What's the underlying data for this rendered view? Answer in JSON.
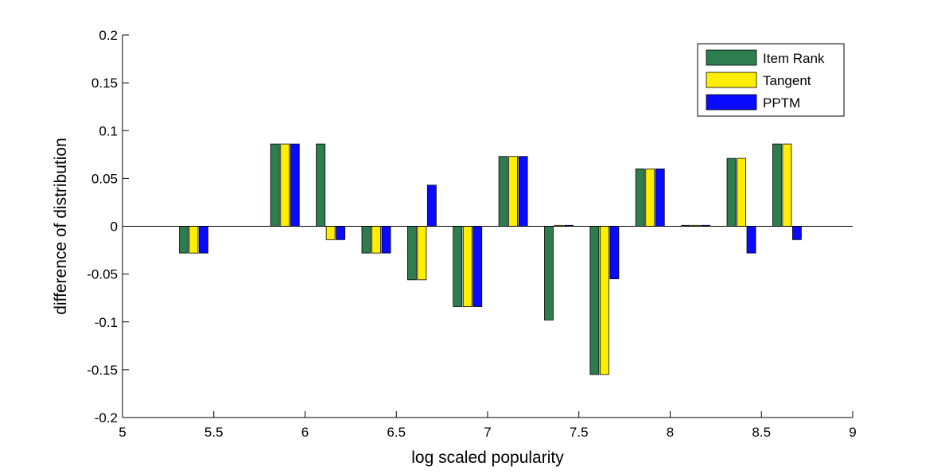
{
  "chart_data": {
    "type": "bar",
    "title": "",
    "xlabel": "log scaled popularity",
    "ylabel": "difference of distribution",
    "xlim": [
      5,
      9
    ],
    "ylim": [
      -0.2,
      0.2
    ],
    "x_ticks": [
      5,
      5.5,
      6,
      6.5,
      7,
      7.5,
      8,
      8.5,
      9
    ],
    "x_tick_labels": [
      "5",
      "5.5",
      "6",
      "6.5",
      "7",
      "7.5",
      "8",
      "8.5",
      "9"
    ],
    "y_ticks": [
      -0.2,
      -0.15,
      -0.1,
      -0.05,
      0,
      0.05,
      0.1,
      0.15,
      0.2
    ],
    "y_tick_labels": [
      "-0.2",
      "-0.15",
      "-0.1",
      "-0.05",
      "0",
      "0.05",
      "0.1",
      "0.15",
      "0.2"
    ],
    "grid": false,
    "legend_position": "top-right",
    "x": [
      5.39,
      5.89,
      6.14,
      6.39,
      6.64,
      6.89,
      7.14,
      7.39,
      7.64,
      7.89,
      8.14,
      8.39,
      8.64
    ],
    "series": [
      {
        "name": "Item Rank",
        "color": "#2e7d4f",
        "values": [
          -0.028,
          0.086,
          0.086,
          -0.028,
          -0.056,
          -0.084,
          0.073,
          -0.098,
          -0.155,
          0.06,
          0.001,
          0.071,
          0.086
        ]
      },
      {
        "name": "Tangent",
        "color": "#ffee00",
        "values": [
          -0.028,
          0.086,
          -0.014,
          -0.028,
          -0.056,
          -0.084,
          0.073,
          0.001,
          -0.155,
          0.06,
          0.001,
          0.071,
          0.086
        ]
      },
      {
        "name": "PPTM",
        "color": "#0a0aff",
        "values": [
          -0.028,
          0.086,
          -0.014,
          -0.028,
          0.043,
          -0.084,
          0.073,
          0.001,
          -0.055,
          0.06,
          0.001,
          -0.028,
          -0.014
        ]
      }
    ]
  }
}
